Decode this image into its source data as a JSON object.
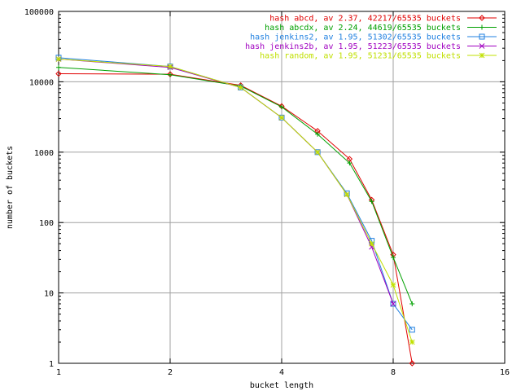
{
  "chart_data": {
    "type": "line",
    "xlabel": "bucket length",
    "ylabel": "number of buckets",
    "x_scale": "log2",
    "y_scale": "log10",
    "xlim": [
      1,
      16
    ],
    "ylim": [
      1,
      100000
    ],
    "grid": true,
    "legend_placement": "top-right",
    "x_ticks": [
      {
        "value": 1,
        "label": "1"
      },
      {
        "value": 2,
        "label": "2"
      },
      {
        "value": 4,
        "label": "4"
      },
      {
        "value": 8,
        "label": "8"
      },
      {
        "value": 16,
        "label": "16"
      }
    ],
    "y_ticks": [
      {
        "value": 1,
        "label": "1"
      },
      {
        "value": 10,
        "label": "10"
      },
      {
        "value": 100,
        "label": "100"
      },
      {
        "value": 1000,
        "label": "1000"
      },
      {
        "value": 10000,
        "label": "10000"
      },
      {
        "value": 100000,
        "label": "100000"
      }
    ],
    "series": [
      {
        "name": "hash abcd, av 2.37, 42217/65535 buckets",
        "color": "#e00000",
        "marker": "diamond",
        "x": [
          1,
          2,
          3.1,
          4,
          5,
          6.1,
          7,
          8,
          9
        ],
        "y": [
          13000,
          12800,
          8900,
          4500,
          2000,
          800,
          210,
          35,
          1
        ]
      },
      {
        "name": "hash abcdx, av 2.24, 44619/65535 buckets",
        "color": "#00a000",
        "marker": "plus",
        "x": [
          1,
          2,
          3.1,
          4,
          5,
          6.1,
          7,
          8,
          9
        ],
        "y": [
          16000,
          12600,
          8700,
          4400,
          1800,
          700,
          200,
          32,
          7
        ]
      },
      {
        "name": "hash jenkins2, av 1.95, 51302/65535 buckets",
        "color": "#2080e0",
        "marker": "square",
        "x": [
          1,
          2,
          3.1,
          4,
          5,
          6,
          7,
          8,
          9
        ],
        "y": [
          22000,
          16500,
          8300,
          3100,
          1000,
          260,
          55,
          7,
          3
        ]
      },
      {
        "name": "hash jenkins2b, av 1.95, 51223/65535 buckets",
        "color": "#a000c0",
        "marker": "cross",
        "x": [
          1,
          2,
          3.1,
          4,
          5,
          6,
          7,
          8
        ],
        "y": [
          21000,
          16000,
          8300,
          3100,
          1000,
          250,
          45,
          7
        ]
      },
      {
        "name": "hash random, av 1.95, 51231/65535 buckets",
        "color": "#c0e000",
        "marker": "star",
        "x": [
          1,
          2,
          3.1,
          4,
          5,
          6,
          7,
          8,
          9
        ],
        "y": [
          21000,
          16500,
          8300,
          3100,
          1000,
          250,
          50,
          13,
          2
        ]
      }
    ]
  }
}
